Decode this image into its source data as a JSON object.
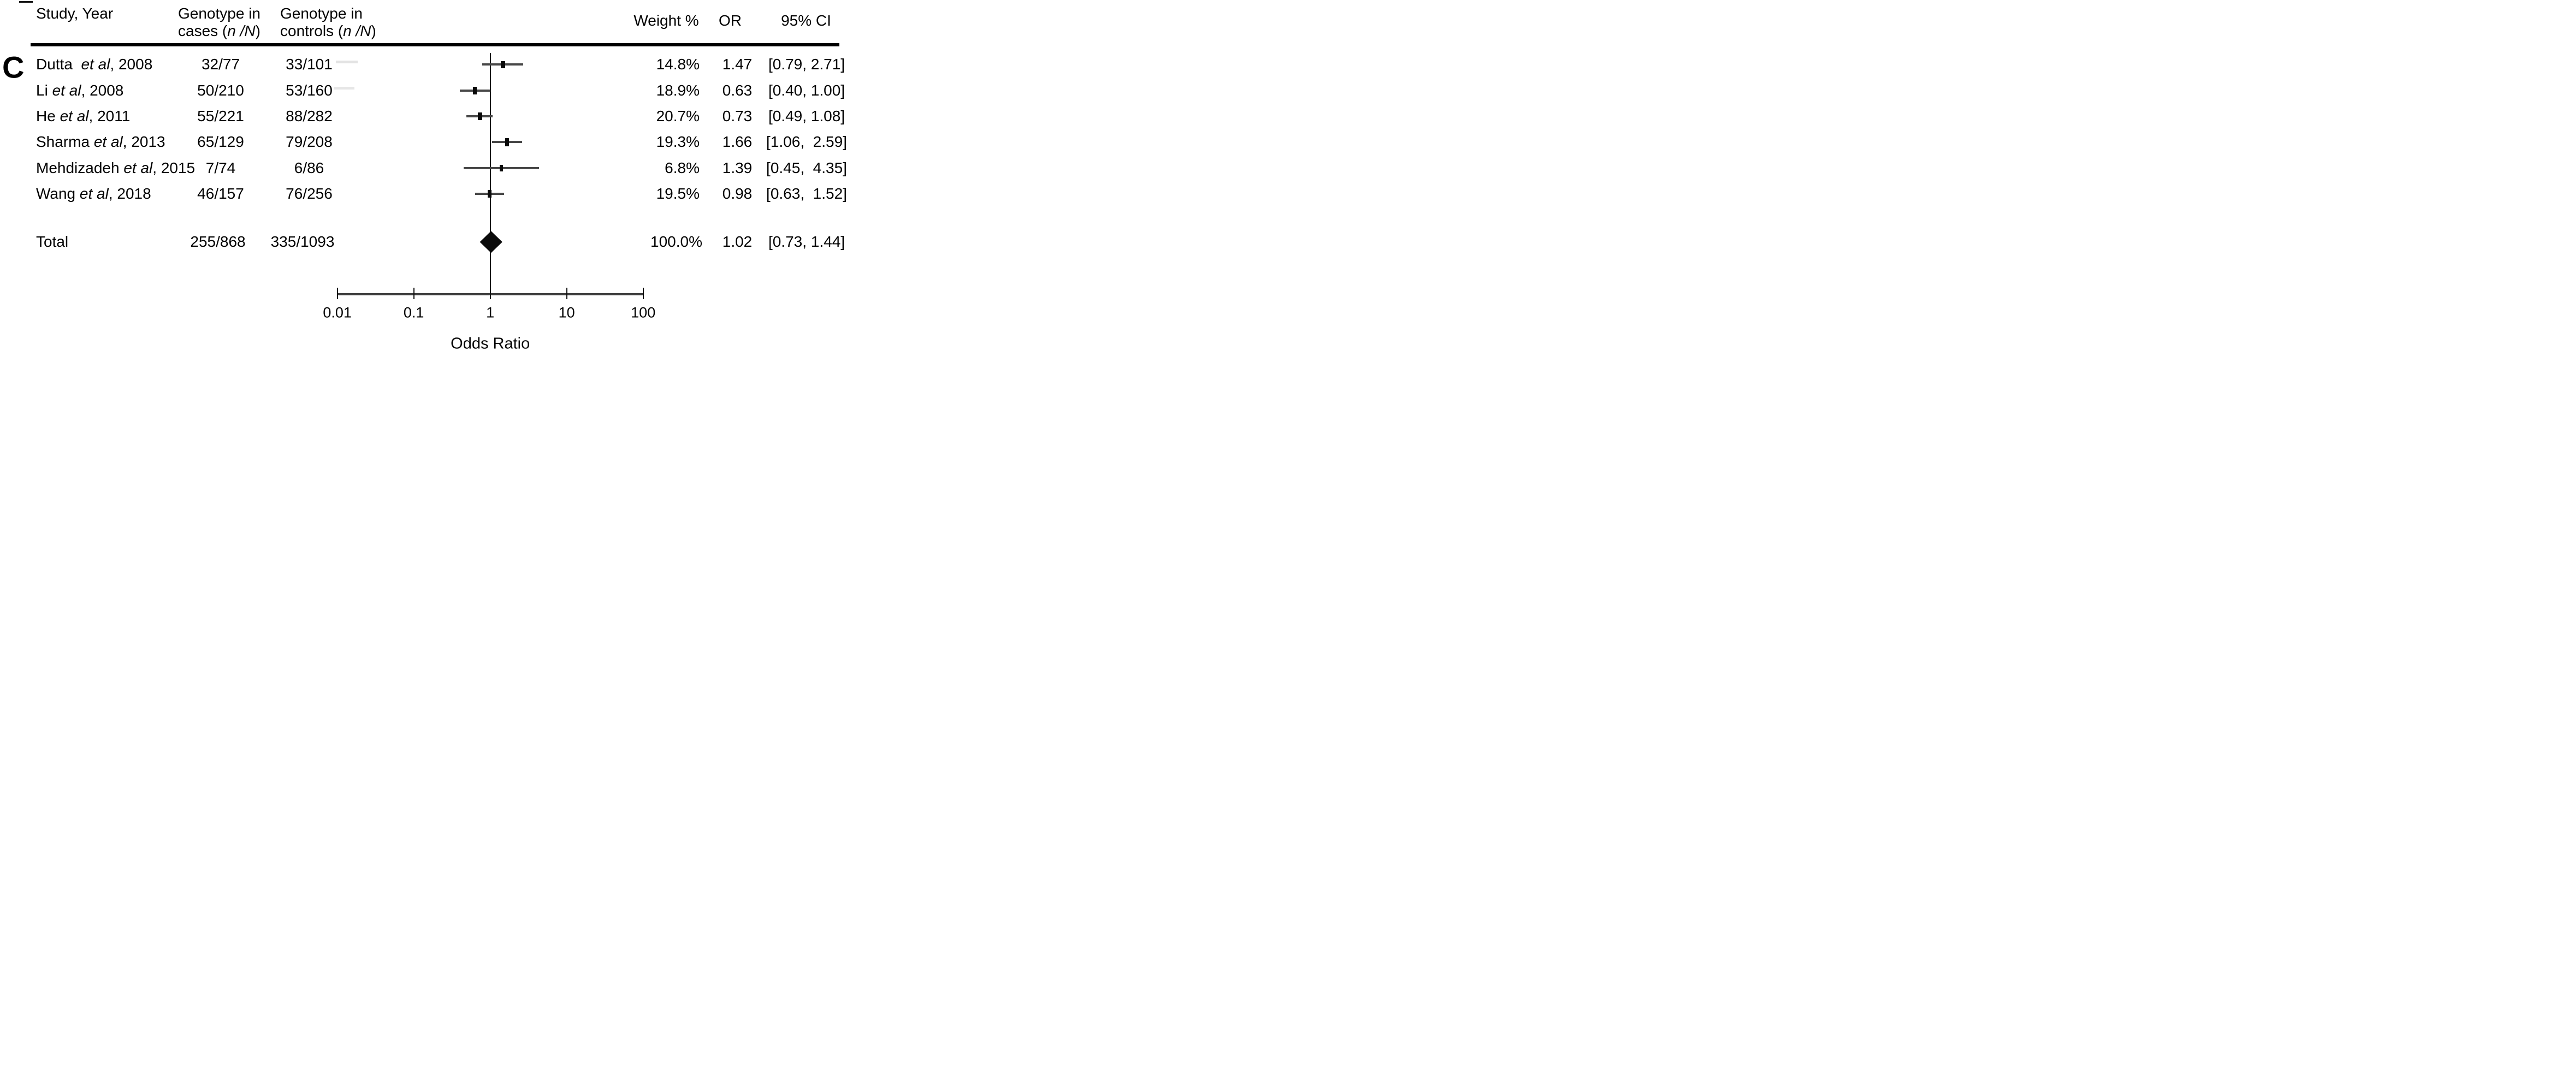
{
  "panel_label": "C",
  "header": {
    "study": "Study, Year",
    "cases_line1": "Genotype in",
    "cases_line2_pre": "cases (",
    "cases_line2_italic": "n /N",
    "cases_line2_post": ")",
    "controls_line1": "Genotype in",
    "controls_line2_pre": "controls (",
    "controls_line2_italic": "n /N",
    "controls_line2_post": ")",
    "weight": "Weight %",
    "or": "OR",
    "ci": "95% CI"
  },
  "studies": [
    {
      "name_pre": "Dutta  ",
      "name_italic": "et al",
      "name_post": ", 2008",
      "cases": "32/77",
      "controls": "33/101",
      "weight_label": "14.8%",
      "or_label": "1.47",
      "ci_label": "[0.79, 2.71]"
    },
    {
      "name_pre": "Li ",
      "name_italic": "et al",
      "name_post": ", 2008",
      "cases": "50/210",
      "controls": "53/160",
      "weight_label": "18.9%",
      "or_label": "0.63",
      "ci_label": "[0.40, 1.00]"
    },
    {
      "name_pre": "He ",
      "name_italic": "et al",
      "name_post": ", 2011",
      "cases": "55/221",
      "controls": "88/282",
      "weight_label": "20.7%",
      "or_label": "0.73",
      "ci_label": "[0.49, 1.08]"
    },
    {
      "name_pre": "Sharma ",
      "name_italic": "et al",
      "name_post": ", 2013",
      "cases": "65/129",
      "controls": "79/208",
      "weight_label": "19.3%",
      "or_label": "1.66",
      "ci_label": "[1.06,  2.59]"
    },
    {
      "name_pre": "Mehdizadeh ",
      "name_italic": "et al",
      "name_post": ", 2015",
      "cases": "7/74",
      "controls": "6/86",
      "weight_label": "6.8%",
      "or_label": "1.39",
      "ci_label": "[0.45,  4.35]"
    },
    {
      "name_pre": "Wang ",
      "name_italic": "et al",
      "name_post": ", 2018",
      "cases": "46/157",
      "controls": "76/256",
      "weight_label": "19.5%",
      "or_label": "0.98",
      "ci_label": "[0.63,  1.52]"
    }
  ],
  "total": {
    "label": "Total",
    "cases": "255/868",
    "controls": "335/1093",
    "weight_label": "100.0%",
    "or_label": "1.02",
    "ci_label": "[0.73, 1.44]"
  },
  "axis": {
    "tick_labels": [
      "0.01",
      "0.1",
      "1",
      "10",
      "100"
    ],
    "label": "Odds Ratio"
  },
  "colors": {
    "text": "#000000",
    "ci_line": "#474747",
    "axis_line": "#3d3d3d",
    "marker": "#0a0a0a",
    "diamond": "#0a0a0a",
    "reference_line": "#111111",
    "header_rule": "#000000"
  },
  "chart_data": {
    "type": "scatter",
    "variant": "forest-plot",
    "xlabel": "Odds Ratio",
    "xscale": "log",
    "xlim": [
      0.01,
      100
    ],
    "x_ticks": [
      0.01,
      0.1,
      1,
      10,
      100
    ],
    "reference_line_x": 1,
    "grid": false,
    "studies": [
      {
        "name": "Dutta et al, 2008",
        "cases_n": 32,
        "cases_N": 77,
        "controls_n": 33,
        "controls_N": 101,
        "weight_pct": 14.8,
        "or": 1.47,
        "ci": [
          0.79,
          2.71
        ]
      },
      {
        "name": "Li et al, 2008",
        "cases_n": 50,
        "cases_N": 210,
        "controls_n": 53,
        "controls_N": 160,
        "weight_pct": 18.9,
        "or": 0.63,
        "ci": [
          0.4,
          1.0
        ]
      },
      {
        "name": "He et al, 2011",
        "cases_n": 55,
        "cases_N": 221,
        "controls_n": 88,
        "controls_N": 282,
        "weight_pct": 20.7,
        "or": 0.73,
        "ci": [
          0.49,
          1.08
        ]
      },
      {
        "name": "Sharma et al, 2013",
        "cases_n": 65,
        "cases_N": 129,
        "controls_n": 79,
        "controls_N": 208,
        "weight_pct": 19.3,
        "or": 1.66,
        "ci": [
          1.06,
          2.59
        ]
      },
      {
        "name": "Mehdizadeh et al, 2015",
        "cases_n": 7,
        "cases_N": 74,
        "controls_n": 6,
        "controls_N": 86,
        "weight_pct": 6.8,
        "or": 1.39,
        "ci": [
          0.45,
          4.35
        ]
      },
      {
        "name": "Wang et al, 2018",
        "cases_n": 46,
        "cases_N": 157,
        "controls_n": 76,
        "controls_N": 256,
        "weight_pct": 19.5,
        "or": 0.98,
        "ci": [
          0.63,
          1.52
        ]
      }
    ],
    "total": {
      "name": "Total",
      "cases_n": 255,
      "cases_N": 868,
      "controls_n": 335,
      "controls_N": 1093,
      "weight_pct": 100.0,
      "or": 1.02,
      "ci": [
        0.73,
        1.44
      ]
    }
  }
}
